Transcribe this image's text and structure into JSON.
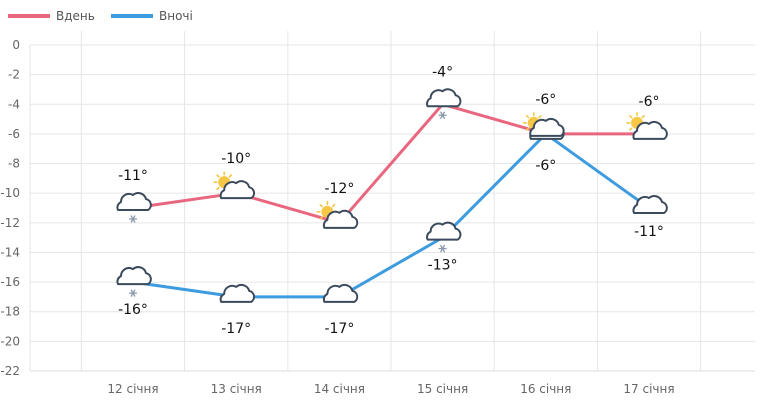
{
  "chart_data": {
    "type": "line",
    "categories": [
      "12 січня",
      "13 січня",
      "14 січня",
      "15 січня",
      "16 січня",
      "17 січня"
    ],
    "series": [
      {
        "name": "Вдень",
        "color": "#e8677f",
        "values": [
          -11,
          -10,
          -12,
          -4,
          -6,
          -6
        ],
        "labels": [
          "-11°",
          "-10°",
          "-12°",
          "-4°",
          "-6°",
          "-6°"
        ],
        "icons": [
          "cloud-snow-icon",
          "partly-sunny-icon",
          "partly-sunny-icon",
          "cloud-snow-icon",
          "partly-sunny-icon",
          "partly-sunny-icon"
        ]
      },
      {
        "name": "Вночі",
        "color": "#3d9be0",
        "values": [
          -16,
          -17,
          -17,
          -13,
          -6,
          -11
        ],
        "labels": [
          "-16°",
          "-17°",
          "-17°",
          "-13°",
          "-6°",
          "-11°"
        ],
        "icons": [
          "cloud-snow-icon",
          "partly-moon-icon",
          "partly-moon-icon",
          "cloud-snow-icon",
          "cloud-icon",
          "partly-moon-icon"
        ]
      }
    ],
    "ylim": [
      -22,
      0
    ],
    "yticks": [
      0,
      -2,
      -4,
      -6,
      -8,
      -10,
      -12,
      -14,
      -16,
      -18,
      -20,
      -22
    ],
    "grid": true,
    "legend": "top-left"
  }
}
